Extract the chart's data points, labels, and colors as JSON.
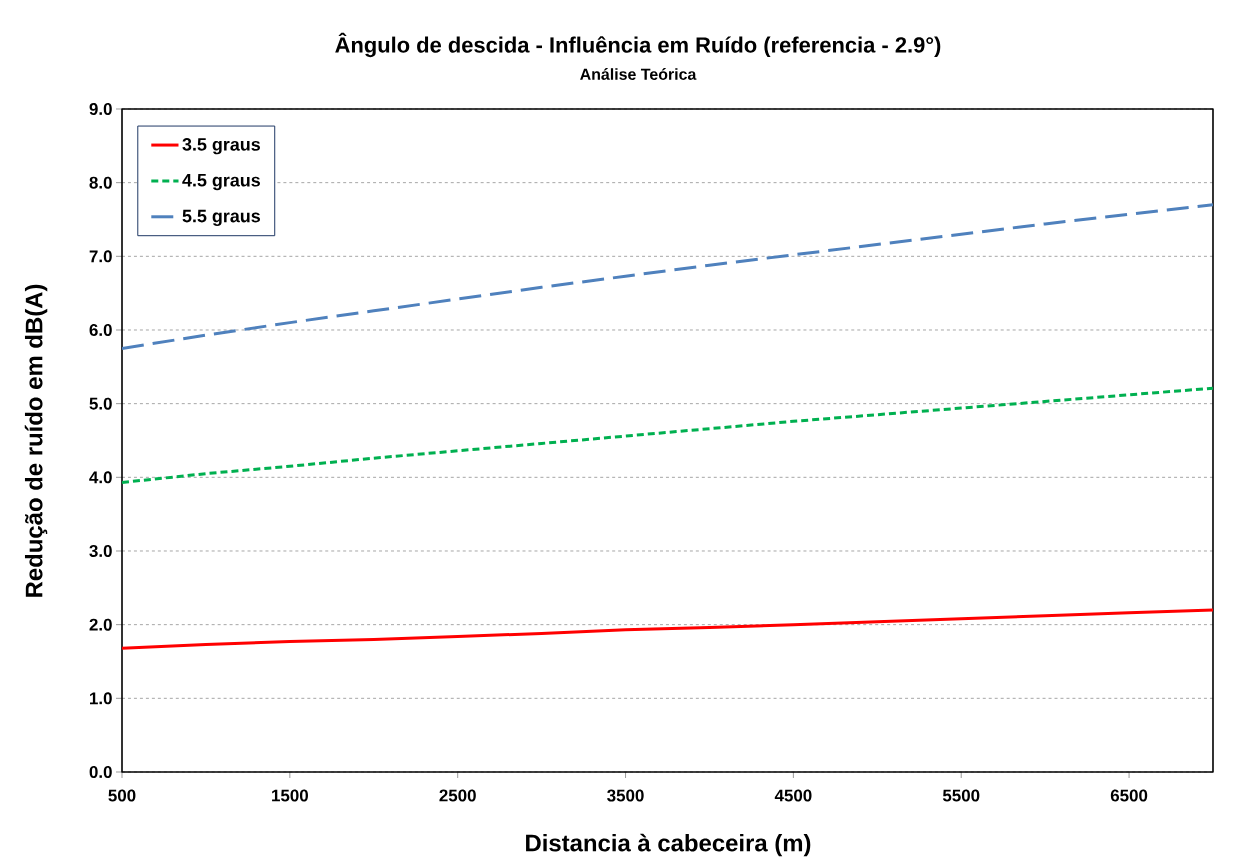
{
  "chart_data": {
    "type": "line",
    "title": "Ângulo de descida - Influência em Ruído (referencia - 2.9°)",
    "subtitle": "Análise Teórica",
    "xlabel": "Distancia à cabeceira (m)",
    "ylabel": "Redução de ruído em dB(A)",
    "x": [
      500,
      1000,
      1500,
      2000,
      2500,
      3000,
      3500,
      4000,
      4500,
      5000,
      5500,
      6000,
      6500,
      7000
    ],
    "series": [
      {
        "name": "3.5 graus",
        "color": "#ff0000",
        "line_style": "solid",
        "values": [
          1.68,
          1.73,
          1.77,
          1.8,
          1.84,
          1.88,
          1.93,
          1.96,
          2.0,
          2.04,
          2.08,
          2.12,
          2.16,
          2.2
        ]
      },
      {
        "name": "4.5 graus",
        "color": "#00b050",
        "line_style": "dotted",
        "values": [
          3.93,
          4.05,
          4.15,
          4.26,
          4.36,
          4.46,
          4.56,
          4.66,
          4.76,
          4.85,
          4.94,
          5.03,
          5.12,
          5.21
        ]
      },
      {
        "name": "5.5 graus",
        "color": "#4f81bd",
        "line_style": "dashed",
        "values": [
          5.75,
          5.93,
          6.1,
          6.26,
          6.42,
          6.58,
          6.73,
          6.88,
          7.02,
          7.16,
          7.3,
          7.44,
          7.57,
          7.7
        ]
      }
    ],
    "xlim": [
      500,
      7000
    ],
    "xticks": [
      500,
      1500,
      2500,
      3500,
      4500,
      5500,
      6500
    ],
    "ylim": [
      0,
      9
    ],
    "yticks": [
      {
        "value": 0,
        "label": "0.0"
      },
      {
        "value": 1,
        "label": "1.0"
      },
      {
        "value": 2,
        "label": "2.0"
      },
      {
        "value": 3,
        "label": "3.0"
      },
      {
        "value": 4,
        "label": "4.0"
      },
      {
        "value": 5,
        "label": "5.0"
      },
      {
        "value": 6,
        "label": "6.0"
      },
      {
        "value": 7,
        "label": "7.0"
      },
      {
        "value": 8,
        "label": "8.0"
      },
      {
        "value": 9,
        "label": "9.0"
      }
    ],
    "grid": "y",
    "legend": "top left",
    "marker": "none"
  }
}
